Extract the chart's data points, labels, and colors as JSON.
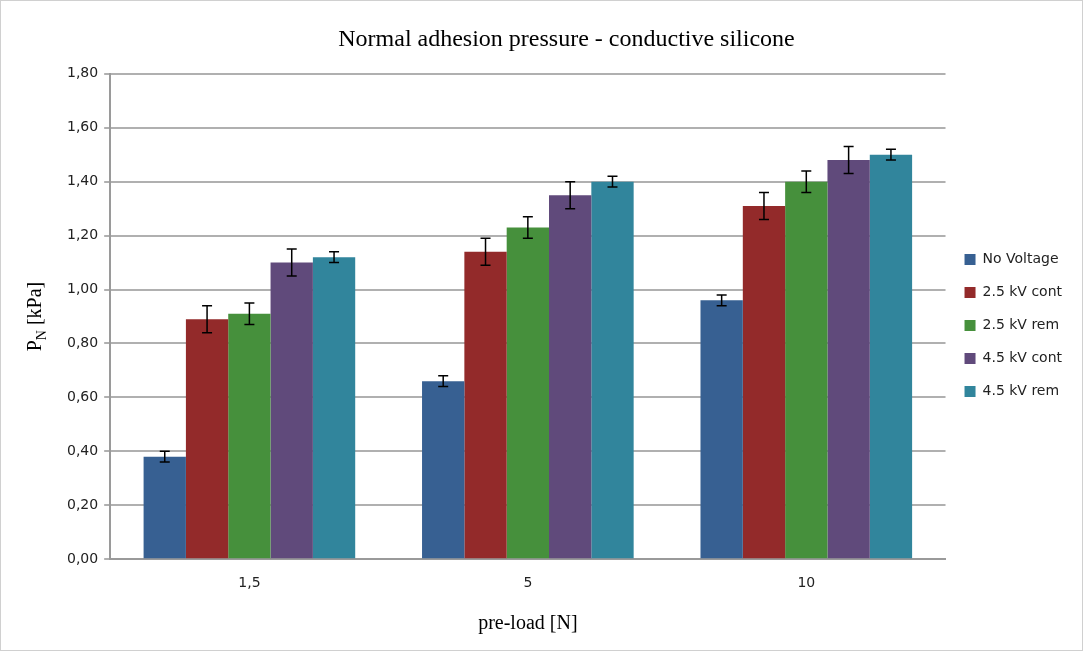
{
  "chart_data": {
    "type": "bar",
    "title": "Normal adhesion pressure - conductive silicone",
    "xlabel": "pre-load [N]",
    "ylabel": "P$_{N}$ [kPa]",
    "categories": [
      "1,5",
      "5",
      "10"
    ],
    "series": [
      {
        "name": "No Voltage",
        "color": "#376092",
        "values": [
          0.38,
          0.66,
          0.96
        ],
        "errors": [
          0.02,
          0.02,
          0.02
        ]
      },
      {
        "name": "2.5 kV cont",
        "color": "#932a2a",
        "values": [
          0.89,
          1.14,
          1.31
        ],
        "errors": [
          0.05,
          0.05,
          0.05
        ]
      },
      {
        "name": "2.5 kV rem",
        "color": "#46903c",
        "values": [
          0.91,
          1.23,
          1.4
        ],
        "errors": [
          0.04,
          0.04,
          0.04
        ]
      },
      {
        "name": "4.5 kV cont",
        "color": "#604a7b",
        "values": [
          1.1,
          1.35,
          1.48
        ],
        "errors": [
          0.05,
          0.05,
          0.05
        ]
      },
      {
        "name": "4.5 kV rem",
        "color": "#31859c",
        "values": [
          1.12,
          1.4,
          1.5
        ],
        "errors": [
          0.02,
          0.02,
          0.02
        ]
      }
    ],
    "ylim": [
      0,
      1.8
    ],
    "yticks": [
      {
        "value": 0,
        "label": "0,00"
      },
      {
        "value": 0.2,
        "label": "0,20"
      },
      {
        "value": 0.4,
        "label": "0,40"
      },
      {
        "value": 0.6,
        "label": "0,60"
      },
      {
        "value": 0.8,
        "label": "0,80"
      },
      {
        "value": 1,
        "label": "1,00"
      },
      {
        "value": 1.2,
        "label": "1,20"
      },
      {
        "value": 1.4,
        "label": "1,40"
      },
      {
        "value": 1.6,
        "label": "1,60"
      },
      {
        "value": 1.8,
        "label": "1,80"
      }
    ],
    "grid": "y",
    "legend": "right"
  }
}
